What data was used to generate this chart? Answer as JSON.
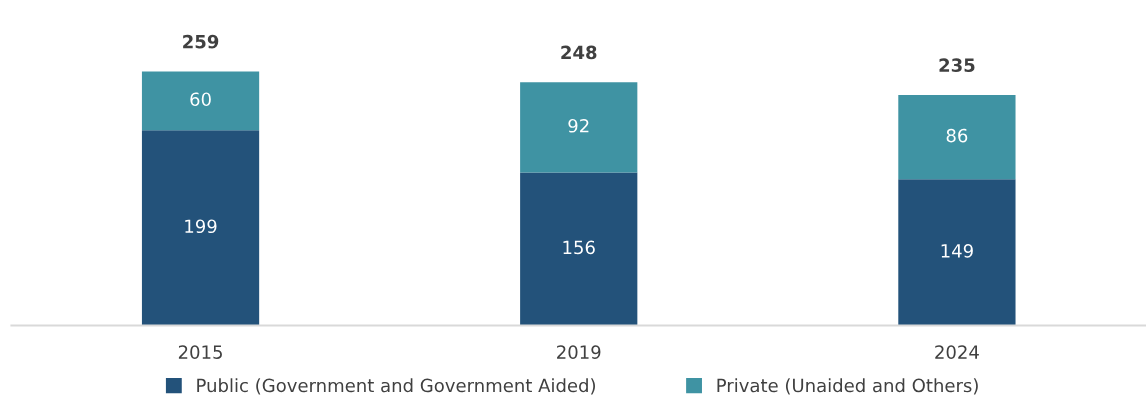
{
  "chart_data": {
    "type": "bar",
    "stacked": true,
    "categories": [
      "2015",
      "2019",
      "2024"
    ],
    "series": [
      {
        "name": "Public (Government and Government Aided)",
        "color": "#23527a",
        "values": [
          199,
          156,
          149
        ]
      },
      {
        "name": "Private (Unaided and Others)",
        "color": "#3f93a3",
        "values": [
          60,
          92,
          86
        ]
      }
    ],
    "data_labels": true,
    "totals": [
      "259",
      "248",
      "235"
    ],
    "legend": "bottom",
    "grid": false,
    "tick_labels": "x"
  }
}
